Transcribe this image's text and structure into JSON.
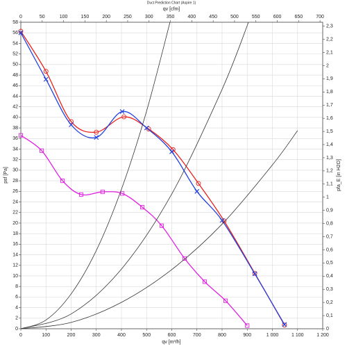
{
  "chart_data": {
    "type": "line",
    "title": "Duct Prediction Chart (Aspire 1)",
    "x_label": "qv [m³/h]",
    "x2_label": "qv [cfm]",
    "y_label": "psf [Pa]",
    "y2_label": "pfa_E [in H2O]",
    "xlim": [
      0,
      1200
    ],
    "xticks": [
      0,
      100,
      200,
      300,
      400,
      500,
      600,
      700,
      800,
      900,
      {
        "value": 1000,
        "label": "1 000"
      },
      {
        "value": 1100,
        "label": "1 100"
      },
      {
        "value": 1200,
        "label": "1 200"
      }
    ],
    "x2lim": [
      0,
      706.3
    ],
    "x2ticks": [
      0,
      50,
      100,
      150,
      200,
      250,
      300,
      350,
      400,
      450,
      500,
      550,
      600,
      650,
      700
    ],
    "ylim": [
      0,
      58
    ],
    "yticks": [
      0,
      2,
      4,
      6,
      8,
      10,
      12,
      14,
      16,
      18,
      20,
      22,
      24,
      26,
      28,
      30,
      32,
      34,
      36,
      38,
      40,
      42,
      44,
      46,
      48,
      50,
      52,
      54,
      56,
      58
    ],
    "y2lim": [
      0,
      2.33
    ],
    "y2ticks": [
      0,
      {
        "value": 0.1,
        "label": "0,1"
      },
      {
        "value": 0.2,
        "label": "0,2"
      },
      {
        "value": 0.3,
        "label": "0,3"
      },
      {
        "value": 0.4,
        "label": "0,4"
      },
      {
        "value": 0.5,
        "label": "0,5"
      },
      {
        "value": 0.6,
        "label": "0,6"
      },
      {
        "value": 0.7,
        "label": "0,7"
      },
      {
        "value": 0.8,
        "label": "0,8"
      },
      {
        "value": 0.9,
        "label": "0,9"
      },
      1,
      {
        "value": 1.1,
        "label": "1,1"
      },
      {
        "value": 1.2,
        "label": "1,2"
      },
      {
        "value": 1.3,
        "label": "1,3"
      },
      {
        "value": 1.4,
        "label": "1,4"
      },
      {
        "value": 1.5,
        "label": "1,5"
      },
      {
        "value": 1.6,
        "label": "1,6"
      },
      {
        "value": 1.7,
        "label": "1,7"
      },
      {
        "value": 1.8,
        "label": "1,8"
      },
      {
        "value": 1.9,
        "label": "1,9"
      },
      2,
      {
        "value": 2.1,
        "label": "2,1"
      },
      {
        "value": 2.2,
        "label": "2,2"
      },
      {
        "value": 2.3,
        "label": "2,3"
      }
    ],
    "grid": true,
    "series": [
      {
        "color": "#e8201c",
        "marker": "circle",
        "x": [
          0,
          100,
          200,
          300,
          410,
          508,
          605,
          706,
          808,
          930,
          1048
        ],
        "values": [
          56.3,
          48.7,
          39.2,
          37.2,
          40.1,
          37.8,
          33.9,
          27.5,
          20.4,
          10.5,
          0.7
        ]
      },
      {
        "color": "#2040e0",
        "marker": "x",
        "x": [
          0,
          100,
          200,
          300,
          403,
          500,
          600,
          700,
          800,
          930,
          1048
        ],
        "values": [
          56,
          47.2,
          38.6,
          36.2,
          41.1,
          38,
          33.5,
          26,
          20.5,
          10.4,
          0.8
        ]
      },
      {
        "color": "#e020e0",
        "marker": "square",
        "x": [
          0,
          83,
          166,
          240,
          325,
          403,
          483,
          560,
          651,
          731,
          814,
          900
        ],
        "values": [
          36.6,
          33.7,
          28,
          25.4,
          25.9,
          25.6,
          23,
          19.5,
          13.3,
          8.9,
          5.3,
          0.6
        ]
      },
      {
        "color": "#333333",
        "marker": "none",
        "x": [
          0,
          100,
          200,
          300,
          400,
          500,
          593
        ],
        "values": [
          0,
          1.65,
          6.6,
          14.8,
          26.4,
          41.2,
          58
        ]
      },
      {
        "color": "#333333",
        "marker": "none",
        "x": [
          0,
          200,
          400,
          600,
          800,
          905
        ],
        "values": [
          0,
          2.8,
          11.3,
          25.5,
          45.3,
          58
        ]
      },
      {
        "color": "#333333",
        "marker": "none",
        "x": [
          0,
          200,
          400,
          600,
          800,
          1000,
          1100
        ],
        "values": [
          0,
          1.2,
          5,
          11.2,
          19.8,
          31,
          37.5
        ]
      }
    ]
  }
}
